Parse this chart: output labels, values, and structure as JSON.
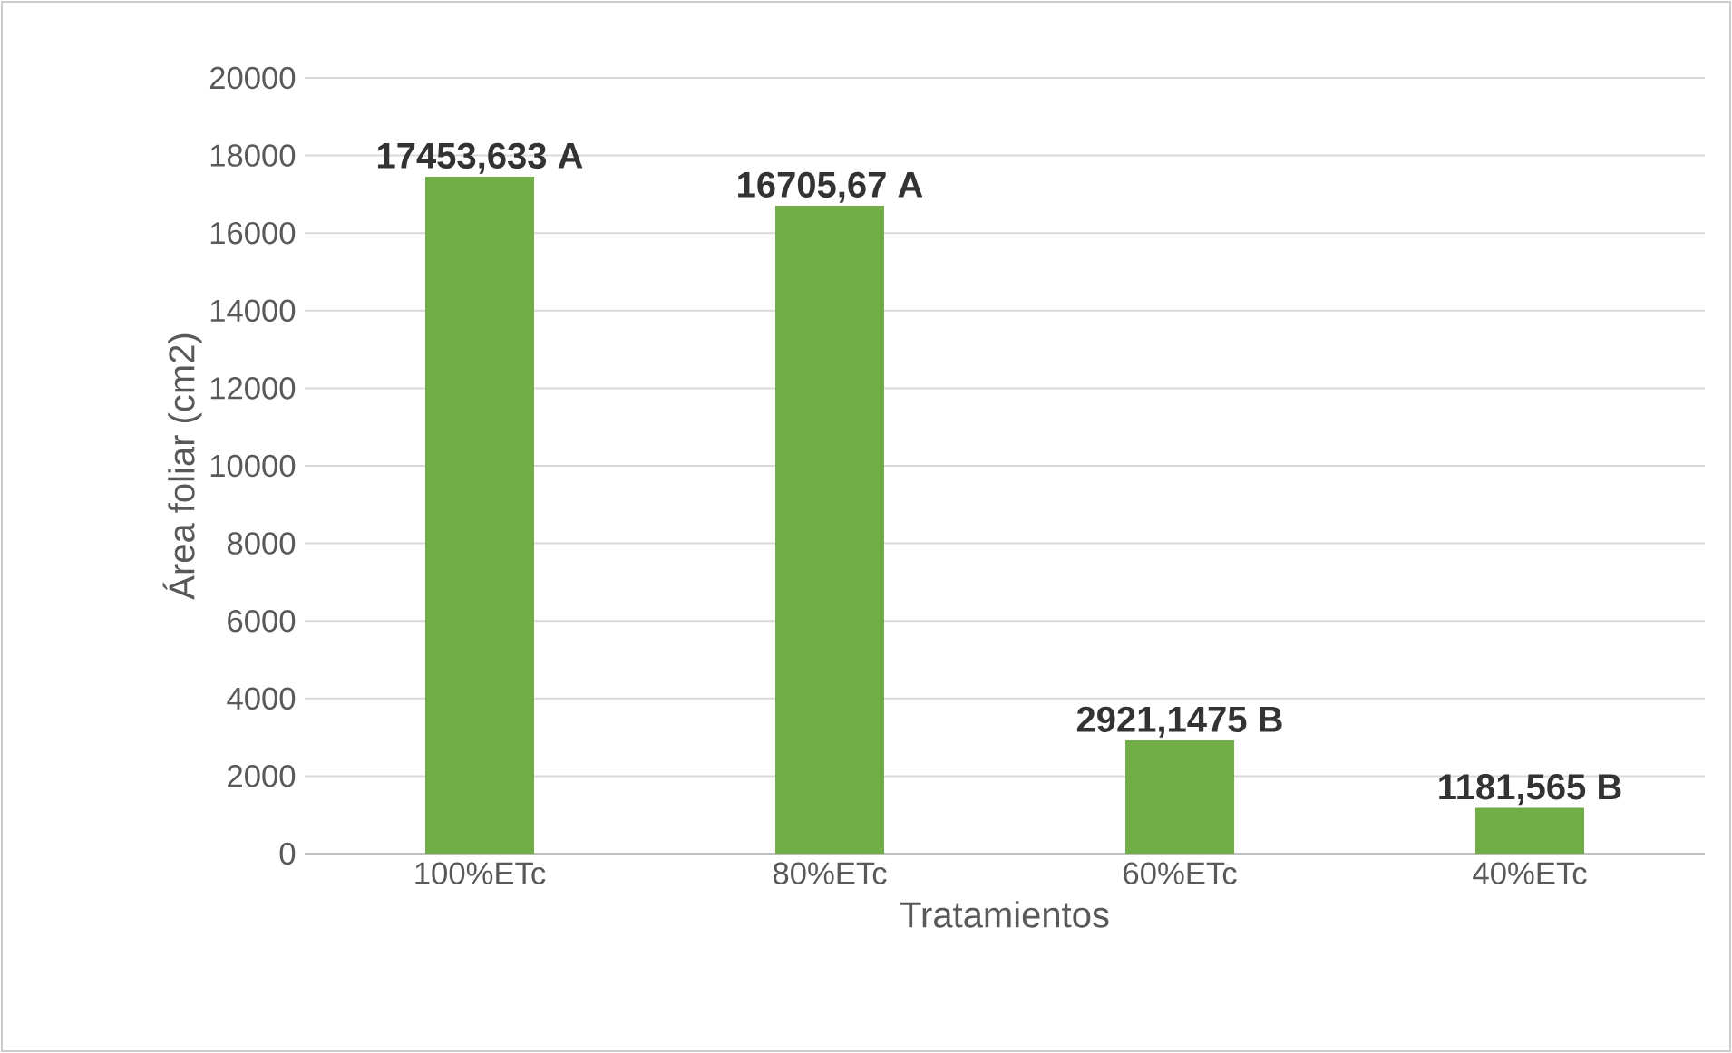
{
  "chart_data": {
    "type": "bar",
    "xlabel": "Tratamientos",
    "ylabel": "Área foliar (cm2)",
    "categories": [
      "100%ETc",
      "80%ETc",
      "60%ETc",
      "40%ETc"
    ],
    "values": [
      17453.633,
      16705.67,
      2921.1475,
      1181.565
    ],
    "value_labels": [
      "17453,633 A",
      "16705,67 A",
      "2921,1475 B",
      "1181,565 B"
    ],
    "color": "#70ad47",
    "ylim": [
      0,
      20000
    ],
    "yticks": [
      0,
      2000,
      4000,
      6000,
      8000,
      10000,
      12000,
      14000,
      16000,
      18000,
      20000
    ],
    "grid": "y"
  }
}
